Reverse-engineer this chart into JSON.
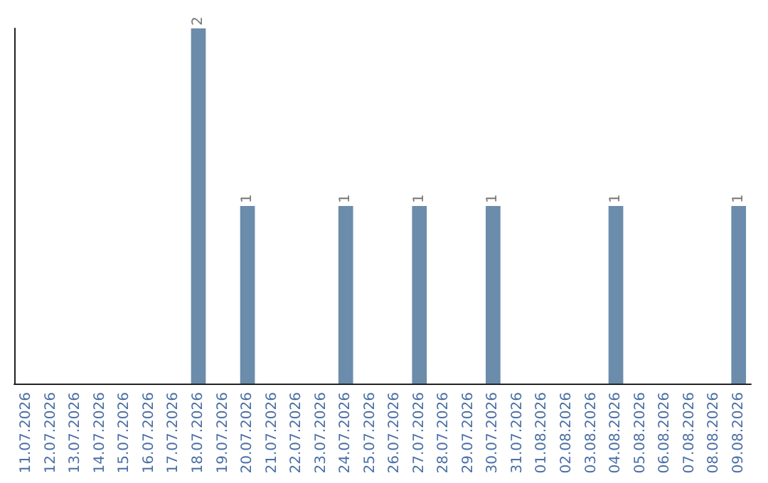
{
  "chart_data": {
    "type": "bar",
    "categories": [
      "11.07.2026",
      "12.07.2026",
      "13.07.2026",
      "14.07.2026",
      "15.07.2026",
      "16.07.2026",
      "17.07.2026",
      "18.07.2026",
      "19.07.2026",
      "20.07.2026",
      "21.07.2026",
      "22.07.2026",
      "23.07.2026",
      "24.07.2026",
      "25.07.2026",
      "26.07.2026",
      "27.07.2026",
      "28.07.2026",
      "29.07.2026",
      "30.07.2026",
      "31.07.2026",
      "01.08.2026",
      "02.08.2026",
      "03.08.2026",
      "04.08.2026",
      "05.08.2026",
      "06.08.2026",
      "07.08.2026",
      "08.08.2026",
      "09.08.2026"
    ],
    "values": [
      0,
      0,
      0,
      0,
      0,
      0,
      0,
      2,
      0,
      1,
      0,
      0,
      0,
      1,
      0,
      0,
      1,
      0,
      0,
      1,
      0,
      0,
      0,
      0,
      1,
      0,
      0,
      0,
      0,
      1
    ],
    "value_labels": [
      null,
      null,
      null,
      null,
      null,
      null,
      null,
      "2",
      null,
      "1",
      null,
      null,
      null,
      "1",
      null,
      null,
      "1",
      null,
      null,
      "1",
      null,
      null,
      null,
      null,
      "1",
      null,
      null,
      null,
      null,
      "1"
    ],
    "color": "#6b8cab",
    "grid": false,
    "tick_labels": "x"
  }
}
